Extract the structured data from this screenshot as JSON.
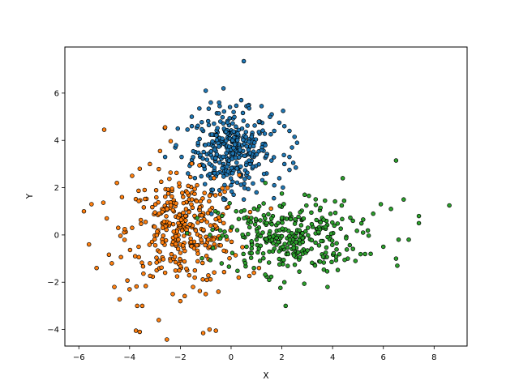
{
  "chart_data": {
    "type": "scatter",
    "title": "",
    "xlabel": "X",
    "ylabel": "Y",
    "xlim": [
      -6.55,
      9.3
    ],
    "ylim": [
      -4.7,
      7.95
    ],
    "xticks": [
      -6,
      -4,
      -2,
      0,
      2,
      4,
      6,
      8
    ],
    "yticks": [
      -4,
      -2,
      0,
      2,
      4,
      6
    ],
    "xtick_labels": [
      "−6",
      "−4",
      "−2",
      "0",
      "2",
      "4",
      "6",
      "8"
    ],
    "ytick_labels": [
      "−4",
      "−2",
      "0",
      "2",
      "4",
      "6"
    ],
    "grid": false,
    "legend": false,
    "marker_edge_color": "#000000",
    "series": [
      {
        "color": "#1f77b4",
        "center": [
          0.0,
          3.6
        ],
        "points": [
          [
            0.5,
            7.35
          ],
          [
            -1.0,
            6.1
          ],
          [
            -0.3,
            6.2
          ],
          [
            0.4,
            5.7
          ],
          [
            -0.8,
            5.6
          ],
          [
            -0.45,
            5.45
          ],
          [
            1.2,
            5.45
          ],
          [
            2.05,
            5.25
          ],
          [
            -1.25,
            5.35
          ],
          [
            0.7,
            5.5
          ],
          [
            0.1,
            5.2
          ],
          [
            1.6,
            5.1
          ],
          [
            -1.55,
            5.0
          ],
          [
            -2.1,
            4.5
          ],
          [
            1.9,
            4.75
          ],
          [
            2.1,
            4.6
          ],
          [
            2.3,
            4.4
          ],
          [
            1.7,
            4.4
          ],
          [
            2.5,
            4.15
          ],
          [
            2.6,
            3.9
          ],
          [
            2.4,
            3.7
          ],
          [
            2.3,
            3.3
          ],
          [
            2.45,
            3.05
          ],
          [
            2.55,
            2.85
          ],
          [
            2.1,
            3.0
          ],
          [
            2.3,
            2.75
          ],
          [
            1.4,
            2.6
          ],
          [
            1.9,
            2.4
          ],
          [
            -2.6,
            3.3
          ],
          [
            -2.2,
            3.7
          ],
          [
            -1.95,
            3.3
          ],
          [
            -1.6,
            3.0
          ],
          [
            -1.7,
            2.6
          ],
          [
            -1.4,
            3.5
          ],
          [
            -1.1,
            4.4
          ],
          [
            -0.3,
            1.55
          ],
          [
            0.1,
            1.7
          ],
          [
            0.5,
            1.5
          ],
          [
            1.0,
            1.8
          ],
          [
            1.7,
            2.1
          ],
          [
            -0.3,
            3.0
          ],
          [
            0.4,
            2.55
          ],
          [
            0.0,
            2.1
          ],
          [
            -0.8,
            2.4
          ]
        ],
        "cluster_size": 320,
        "sigma": [
          0.75,
          0.8
        ]
      },
      {
        "color": "#ff7f0e",
        "center": [
          -1.9,
          0.2
        ],
        "points": [
          [
            -5.0,
            4.45
          ],
          [
            -2.6,
            4.55
          ],
          [
            -2.8,
            3.55
          ],
          [
            -3.2,
            3.0
          ],
          [
            -3.6,
            2.8
          ],
          [
            -3.9,
            2.5
          ],
          [
            -4.5,
            2.2
          ],
          [
            -5.5,
            1.3
          ],
          [
            -5.8,
            1.0
          ],
          [
            -5.6,
            -0.4
          ],
          [
            -5.3,
            -1.4
          ],
          [
            -4.7,
            -1.2
          ],
          [
            -4.6,
            -2.2
          ],
          [
            -4.0,
            -2.3
          ],
          [
            -3.7,
            -3.0
          ],
          [
            -3.5,
            -3.0
          ],
          [
            -3.6,
            -4.1
          ],
          [
            -3.75,
            -4.05
          ],
          [
            -2.85,
            -3.6
          ],
          [
            -1.1,
            -4.15
          ],
          [
            -0.85,
            -4.0
          ],
          [
            -0.6,
            -4.05
          ],
          [
            -2.3,
            -2.5
          ],
          [
            -2.0,
            -2.8
          ],
          [
            -1.5,
            -2.2
          ],
          [
            -1.0,
            -2.5
          ],
          [
            -0.5,
            -2.4
          ],
          [
            0.3,
            -1.8
          ],
          [
            0.9,
            -1.6
          ],
          [
            1.1,
            -1.4
          ],
          [
            -4.9,
            0.7
          ],
          [
            -4.3,
            1.6
          ],
          [
            -3.9,
            0.3
          ],
          [
            -3.2,
            -1.2
          ],
          [
            -2.6,
            -1.6
          ]
        ],
        "cluster_size": 330,
        "sigma": [
          1.1,
          1.15
        ]
      },
      {
        "color": "#2ca02c",
        "center": [
          2.2,
          -0.1
        ],
        "points": [
          [
            8.6,
            1.25
          ],
          [
            6.5,
            3.15
          ],
          [
            7.4,
            0.8
          ],
          [
            7.4,
            0.5
          ],
          [
            6.8,
            1.5
          ],
          [
            6.3,
            1.1
          ],
          [
            6.6,
            -0.2
          ],
          [
            6.5,
            -1.0
          ],
          [
            6.55,
            -1.3
          ],
          [
            6.0,
            -0.5
          ],
          [
            5.6,
            0.9
          ],
          [
            4.8,
            0.6
          ],
          [
            4.4,
            2.4
          ],
          [
            4.9,
            -1.1
          ],
          [
            4.6,
            -1.0
          ],
          [
            3.8,
            -2.2
          ],
          [
            2.15,
            -3.0
          ],
          [
            2.1,
            -2.0
          ],
          [
            1.5,
            -1.9
          ],
          [
            0.9,
            -1.4
          ],
          [
            1.35,
            2.2
          ],
          [
            2.0,
            1.75
          ],
          [
            2.9,
            1.7
          ],
          [
            3.7,
            1.45
          ],
          [
            3.5,
            1.05
          ],
          [
            0.2,
            1.0
          ],
          [
            0.6,
            0.75
          ],
          [
            1.0,
            -0.2
          ],
          [
            5.5,
            -0.8
          ],
          [
            5.2,
            0.1
          ],
          [
            7.0,
            -0.2
          ],
          [
            5.9,
            1.3
          ]
        ],
        "cluster_size": 300,
        "sigma": [
          1.35,
          0.75
        ]
      }
    ]
  }
}
